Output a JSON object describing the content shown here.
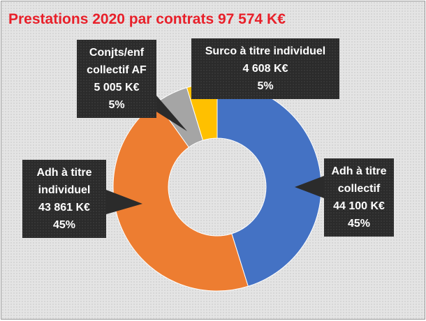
{
  "chart_data": {
    "type": "pie",
    "donut": true,
    "title": "Prestations 2020 par contrats 97 574 K€",
    "categories": [
      "Adh à titre collectif",
      "Adh à titre individuel",
      "Conjts/enf collectif AF",
      "Surco à titre individuel"
    ],
    "values": [
      44100,
      43861,
      5005,
      4608
    ],
    "value_labels": [
      "44 100 K€",
      "43 861 K€",
      "5 005 K€",
      "4 608  K€"
    ],
    "percents": [
      45,
      45,
      5,
      5
    ],
    "percent_labels": [
      "45%",
      "45%",
      "5%",
      "5%"
    ],
    "colors": [
      "#4472c4",
      "#ed7d31",
      "#a5a5a5",
      "#ffc000"
    ]
  }
}
